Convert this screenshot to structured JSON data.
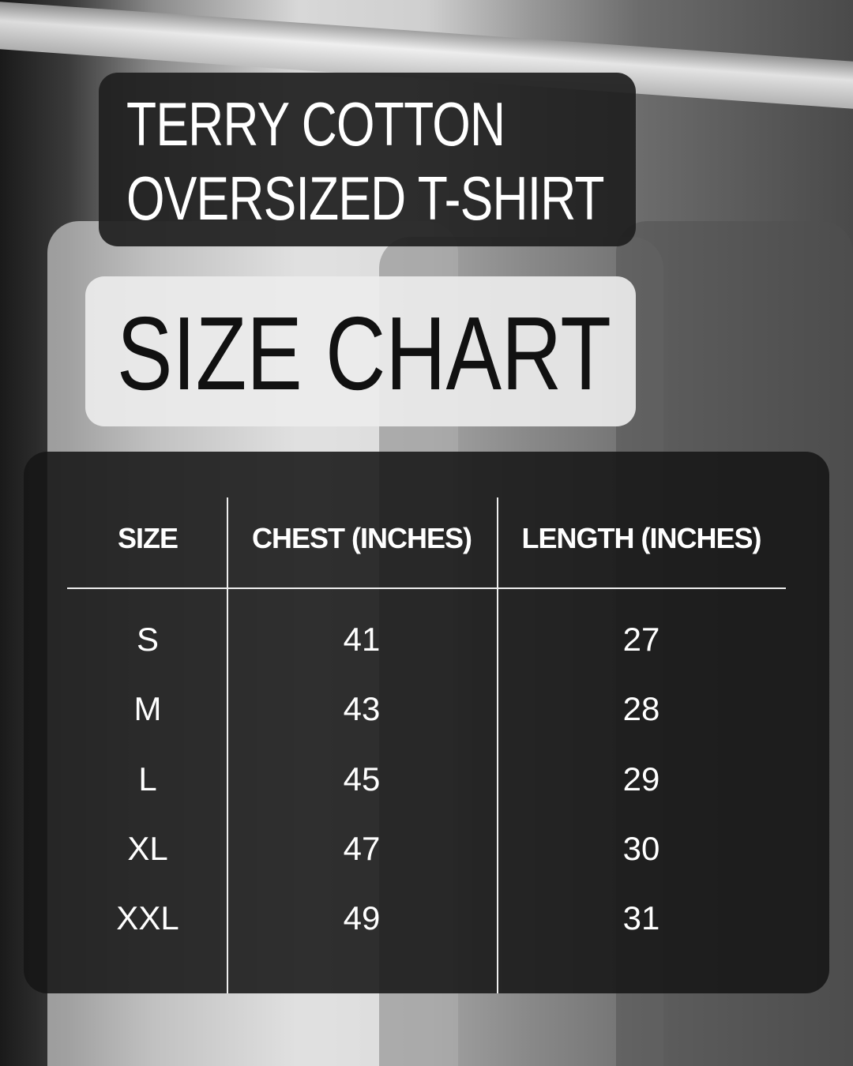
{
  "title": {
    "line1": "TERRY COTTON",
    "line2": "OVERSIZED T-SHIRT"
  },
  "subtitle": "SIZE CHART",
  "table": {
    "headers": [
      "SIZE",
      "CHEST (INCHES)",
      "LENGTH (INCHES)"
    ],
    "rows": [
      [
        "S",
        "41",
        "27"
      ],
      [
        "M",
        "43",
        "28"
      ],
      [
        "L",
        "45",
        "29"
      ],
      [
        "XL",
        "47",
        "30"
      ],
      [
        "XXL",
        "49",
        "31"
      ]
    ]
  }
}
